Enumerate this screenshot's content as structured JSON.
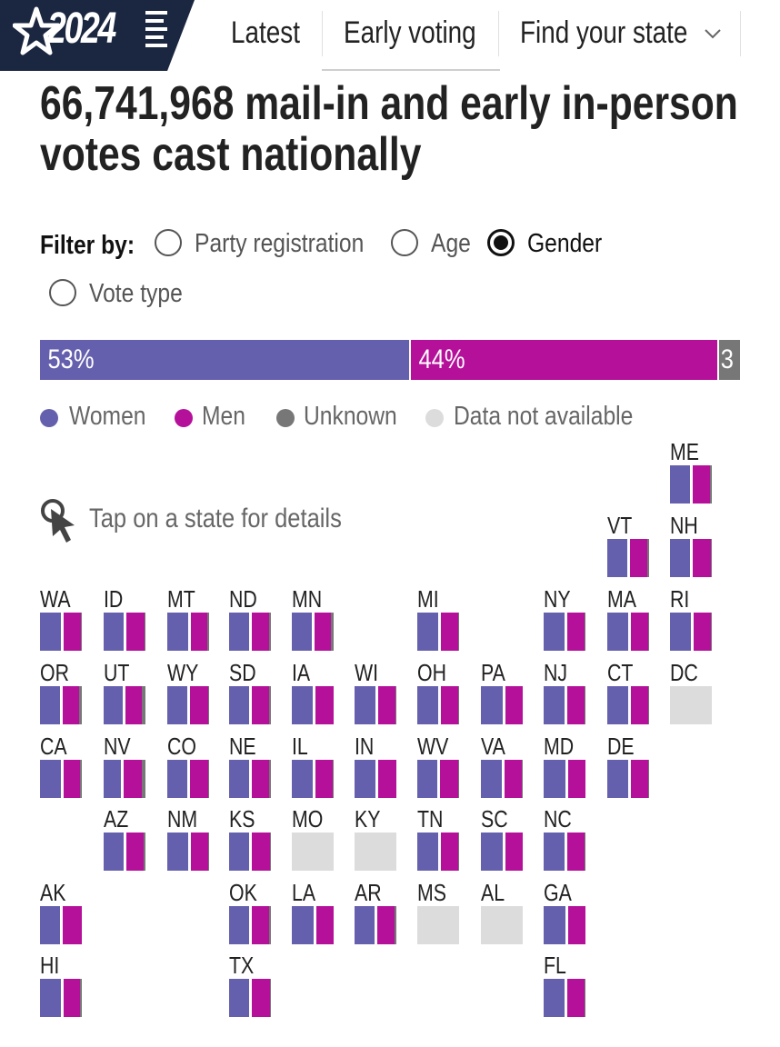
{
  "header": {
    "logo_year": "2024",
    "nav": [
      "Latest",
      "Early voting",
      "Find your state"
    ]
  },
  "headline": "66,741,968 mail-in and early in-person votes cast nationally",
  "filter": {
    "label": "Filter by:",
    "options": [
      "Party registration",
      "Age",
      "Gender",
      "Vote type"
    ],
    "selected": "Gender"
  },
  "national_bar": [
    {
      "label": "53%",
      "value": 53,
      "color": "#6560ad"
    },
    {
      "label": "44%",
      "value": 44,
      "color": "#b5109a"
    },
    {
      "label": "3",
      "value": 3,
      "color": "#777777"
    }
  ],
  "legend": [
    {
      "label": "Women",
      "color": "#6560ad"
    },
    {
      "label": "Men",
      "color": "#b5109a"
    },
    {
      "label": "Unknown",
      "color": "#777777"
    },
    {
      "label": "Data not available",
      "color": "#dcdcdc"
    }
  ],
  "tap_hint": "Tap on a state for details",
  "states": [
    {
      "abbr": "ME",
      "w": 52,
      "m": 44,
      "u": 4
    },
    {
      "abbr": "VT",
      "w": 52,
      "m": 45,
      "u": 3
    },
    {
      "abbr": "NH",
      "w": 52,
      "m": 46,
      "u": 2
    },
    {
      "abbr": "WA",
      "w": 53,
      "m": 45,
      "u": 2
    },
    {
      "abbr": "ID",
      "w": 52,
      "m": 46,
      "u": 2
    },
    {
      "abbr": "MT",
      "w": 53,
      "m": 43,
      "u": 4
    },
    {
      "abbr": "ND",
      "w": 50,
      "m": 45,
      "u": 5
    },
    {
      "abbr": "MN",
      "w": 52,
      "m": 43,
      "u": 5
    },
    {
      "abbr": "MI",
      "w": 53,
      "m": 45,
      "u": 2
    },
    {
      "abbr": "NY",
      "w": 53,
      "m": 44,
      "u": 3
    },
    {
      "abbr": "MA",
      "w": 53,
      "m": 44,
      "u": 3
    },
    {
      "abbr": "RI",
      "w": 53,
      "m": 45,
      "u": 2
    },
    {
      "abbr": "OR",
      "w": 52,
      "m": 42,
      "u": 6
    },
    {
      "abbr": "UT",
      "w": 49,
      "m": 43,
      "u": 8
    },
    {
      "abbr": "WY",
      "w": 52,
      "m": 46,
      "u": 2
    },
    {
      "abbr": "SD",
      "w": 52,
      "m": 45,
      "u": 3
    },
    {
      "abbr": "IA",
      "w": 53,
      "m": 46,
      "u": 1
    },
    {
      "abbr": "WI",
      "w": 53,
      "m": 44,
      "u": 3
    },
    {
      "abbr": "OH",
      "w": 53,
      "m": 45,
      "u": 2
    },
    {
      "abbr": "PA",
      "w": 55,
      "m": 44,
      "u": 1
    },
    {
      "abbr": "NJ",
      "w": 53,
      "m": 45,
      "u": 2
    },
    {
      "abbr": "CT",
      "w": 53,
      "m": 45,
      "u": 2
    },
    {
      "abbr": "DC",
      "na": true
    },
    {
      "abbr": "CA",
      "w": 53,
      "m": 43,
      "u": 4
    },
    {
      "abbr": "NV",
      "w": 45,
      "m": 47,
      "u": 8
    },
    {
      "abbr": "CO",
      "w": 51,
      "m": 46,
      "u": 3
    },
    {
      "abbr": "NE",
      "w": 52,
      "m": 45,
      "u": 3
    },
    {
      "abbr": "IL",
      "w": 54,
      "m": 45,
      "u": 1
    },
    {
      "abbr": "IN",
      "w": 53,
      "m": 46,
      "u": 1
    },
    {
      "abbr": "WV",
      "w": 52,
      "m": 46,
      "u": 2
    },
    {
      "abbr": "VA",
      "w": 54,
      "m": 45,
      "u": 1
    },
    {
      "abbr": "MD",
      "w": 55,
      "m": 44,
      "u": 1
    },
    {
      "abbr": "DE",
      "w": 53,
      "m": 44,
      "u": 3
    },
    {
      "abbr": "AZ",
      "w": 52,
      "m": 45,
      "u": 3
    },
    {
      "abbr": "NM",
      "w": 53,
      "m": 45,
      "u": 2
    },
    {
      "abbr": "KS",
      "w": 52,
      "m": 46,
      "u": 2
    },
    {
      "abbr": "MO",
      "na": true
    },
    {
      "abbr": "KY",
      "na": true
    },
    {
      "abbr": "TN",
      "w": 54,
      "m": 45,
      "u": 1
    },
    {
      "abbr": "SC",
      "w": 55,
      "m": 44,
      "u": 1
    },
    {
      "abbr": "NC",
      "w": 54,
      "m": 44,
      "u": 2
    },
    {
      "abbr": "AK",
      "w": 50,
      "m": 48,
      "u": 2
    },
    {
      "abbr": "OK",
      "w": 52,
      "m": 44,
      "u": 4
    },
    {
      "abbr": "LA",
      "w": 55,
      "m": 44,
      "u": 1
    },
    {
      "abbr": "AR",
      "w": 51,
      "m": 44,
      "u": 5
    },
    {
      "abbr": "MS",
      "na": true
    },
    {
      "abbr": "AL",
      "na": true
    },
    {
      "abbr": "GA",
      "w": 55,
      "m": 44,
      "u": 1
    },
    {
      "abbr": "HI",
      "w": 53,
      "m": 43,
      "u": 4
    },
    {
      "abbr": "TX",
      "w": 52,
      "m": 47,
      "u": 1
    },
    {
      "abbr": "FL",
      "w": 54,
      "m": 45,
      "u": 1
    }
  ]
}
